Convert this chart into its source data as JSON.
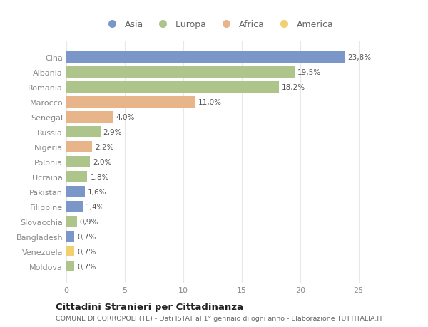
{
  "countries": [
    "Cina",
    "Albania",
    "Romania",
    "Marocco",
    "Senegal",
    "Russia",
    "Nigeria",
    "Polonia",
    "Ucraina",
    "Pakistan",
    "Filippine",
    "Slovacchia",
    "Bangladesh",
    "Venezuela",
    "Moldova"
  ],
  "values": [
    23.8,
    19.5,
    18.2,
    11.0,
    4.0,
    2.9,
    2.2,
    2.0,
    1.8,
    1.6,
    1.4,
    0.9,
    0.7,
    0.7,
    0.7
  ],
  "labels": [
    "23,8%",
    "19,5%",
    "18,2%",
    "11,0%",
    "4,0%",
    "2,9%",
    "2,2%",
    "2,0%",
    "1,8%",
    "1,6%",
    "1,4%",
    "0,9%",
    "0,7%",
    "0,7%",
    "0,7%"
  ],
  "continents": [
    "Asia",
    "Europa",
    "Europa",
    "Africa",
    "Africa",
    "Europa",
    "Africa",
    "Europa",
    "Europa",
    "Asia",
    "Asia",
    "Europa",
    "Asia",
    "America",
    "Europa"
  ],
  "continent_colors": {
    "Asia": "#7b96c8",
    "Europa": "#adc48a",
    "Africa": "#e8b48a",
    "America": "#f0d070"
  },
  "legend_order": [
    "Asia",
    "Europa",
    "Africa",
    "America"
  ],
  "title": "Cittadini Stranieri per Cittadinanza",
  "subtitle": "COMUNE DI CORROPOLI (TE) - Dati ISTAT al 1° gennaio di ogni anno - Elaborazione TUTTITALIA.IT",
  "xlim": [
    0,
    26
  ],
  "xticks": [
    0,
    5,
    10,
    15,
    20,
    25
  ],
  "background_color": "#ffffff",
  "grid_color": "#e8e8e8",
  "bar_height": 0.75
}
